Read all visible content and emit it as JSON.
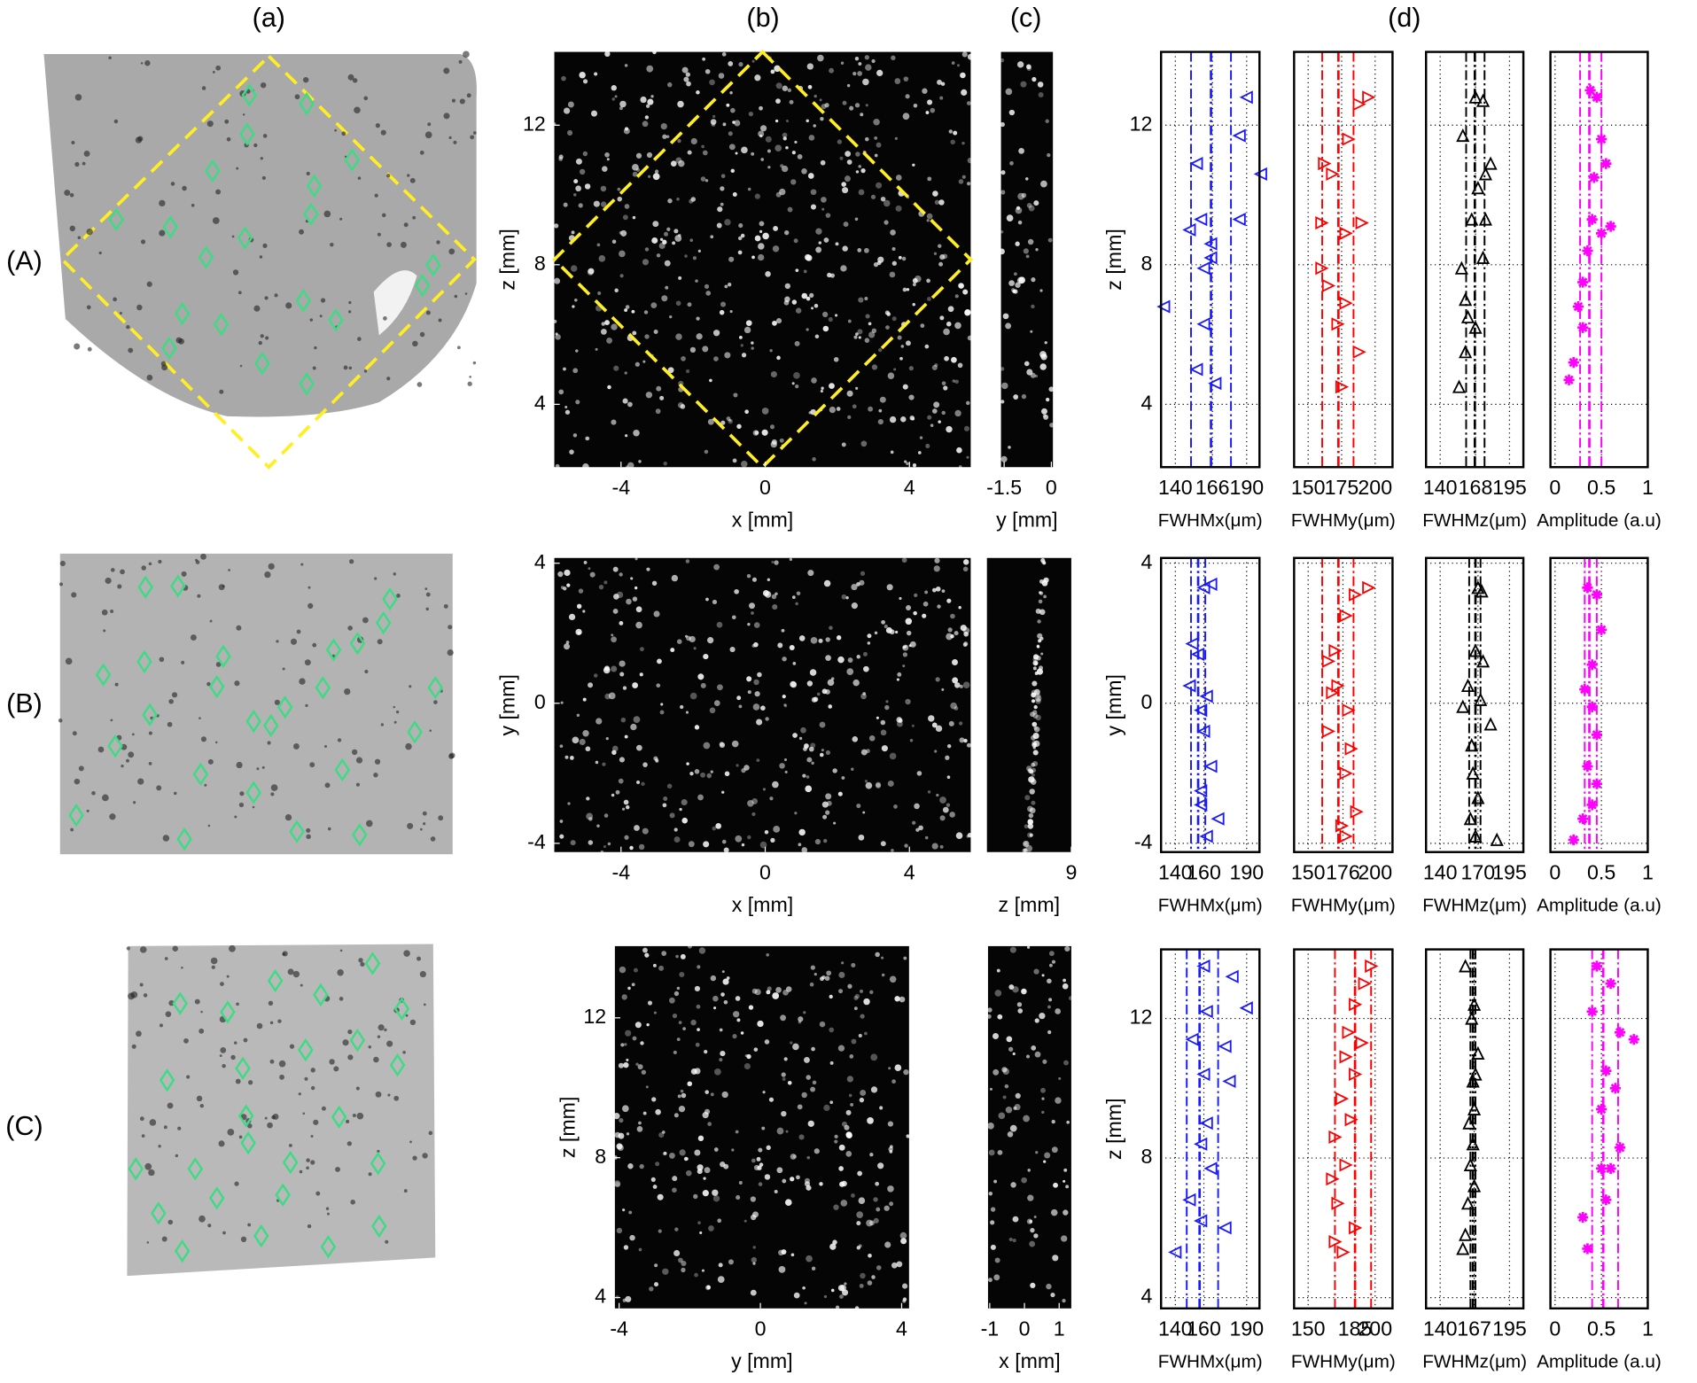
{
  "column_labels": [
    "(a)",
    "(b)",
    "(c)",
    "(d)"
  ],
  "row_labels": [
    "(A)",
    "(B)",
    "(C)"
  ],
  "chart_data": [
    {
      "type": "image",
      "xlabel": "x [mm]",
      "ylabel": "z [mm]",
      "xlim": [
        -5.85,
        5.7
      ],
      "xticks": [
        -4,
        0,
        4
      ],
      "ylim": [
        2.2,
        14.1
      ],
      "yticks": [
        4,
        8,
        12
      ]
    },
    {
      "type": "image",
      "xlabel": "y [mm]",
      "xlim": [
        -1.6,
        0.05
      ],
      "xticks": [
        -1.5,
        0
      ],
      "ylim": [
        2.2,
        14.1
      ]
    },
    {
      "type": "scatter",
      "xlabel": "FWHMx(μm)",
      "ylabel": "z [mm]",
      "xlim": [
        130,
        199
      ],
      "xticks": [
        140,
        166,
        190
      ],
      "ylim": [
        2.2,
        14.1
      ],
      "yticks": [
        4,
        8,
        12
      ],
      "marker": "triangle-left",
      "color": "#1a1aff",
      "lines": [
        151,
        165,
        179
      ],
      "x": [
        190,
        185,
        200,
        155,
        158,
        150,
        165,
        160,
        132,
        160,
        155,
        168,
        185,
        165
      ],
      "y": [
        12.8,
        11.7,
        10.6,
        10.9,
        9.3,
        9,
        8.6,
        7.9,
        6.8,
        6.3,
        5,
        4.6,
        9.3,
        8.2
      ]
    },
    {
      "type": "scatter",
      "xlabel": "FWHMy(μm)",
      "xlim": [
        139.5,
        213
      ],
      "xticks": [
        150,
        175,
        200
      ],
      "ylim": [
        2.2,
        14.1
      ],
      "yticks": [
        4,
        8,
        12
      ],
      "ytick_labels": false,
      "marker": "triangle-right",
      "color": "#ff0000",
      "lines": [
        160.5,
        172.6,
        183.9
      ],
      "x": [
        195,
        188,
        180,
        162,
        168,
        160,
        190,
        178,
        160,
        165,
        178,
        172,
        188,
        175
      ],
      "y": [
        12.8,
        12.6,
        11.6,
        10.9,
        10.6,
        9.2,
        9.2,
        8.9,
        7.9,
        7.4,
        6.9,
        6.3,
        5.5,
        4.5
      ]
    },
    {
      "type": "scatter",
      "xlabel": "FWHMz(μm)",
      "xlim": [
        128.8,
        206
      ],
      "xticks": [
        140,
        168,
        195
      ],
      "ylim": [
        2.2,
        14.1
      ],
      "yticks": [
        4,
        8,
        12
      ],
      "ytick_labels": false,
      "marker": "triangle-up",
      "color": "#000000",
      "lines": [
        160.6,
        167.5,
        175.2
      ],
      "x": [
        168,
        174,
        158,
        180,
        176,
        165,
        170,
        176,
        157,
        174,
        160,
        162,
        168,
        160,
        155
      ],
      "y": [
        12.8,
        12.7,
        11.7,
        10.9,
        10.6,
        9.3,
        10.2,
        9.3,
        7.9,
        8.2,
        7,
        6.5,
        6.2,
        5.5,
        4.5
      ]
    },
    {
      "type": "scatter",
      "xlabel": "Amplitude (a.u)",
      "xlim": [
        -0.05,
        1
      ],
      "xticks": [
        0,
        0.5,
        1
      ],
      "ylim": [
        2.2,
        14.1
      ],
      "yticks": [
        4,
        8,
        12
      ],
      "ytick_labels": false,
      "marker": "star",
      "color": "#ff00ff",
      "lines": [
        0.27,
        0.37,
        0.5
      ],
      "x": [
        0.38,
        0.45,
        0.5,
        0.55,
        0.42,
        0.4,
        0.5,
        0.6,
        0.35,
        0.3,
        0.25,
        0.3,
        0.2,
        0.15
      ],
      "y": [
        13,
        12.8,
        11.6,
        10.9,
        10.5,
        9.3,
        8.9,
        9.1,
        8.4,
        7.5,
        6.8,
        6.2,
        5.2,
        4.7
      ]
    },
    {
      "type": "image",
      "xlabel": "x [mm]",
      "ylabel": "y [mm]",
      "xlim": [
        -5.85,
        5.7
      ],
      "xticks": [
        -4,
        0,
        4
      ],
      "ylim": [
        -4.25,
        4.15
      ],
      "yticks": [
        -4,
        0,
        4
      ]
    },
    {
      "type": "image",
      "xlabel": "z [mm]",
      "xlim": [
        6.6,
        9
      ],
      "xticks": [
        9
      ],
      "ylim": [
        -4.25,
        4.15
      ]
    },
    {
      "type": "scatter",
      "xlabel": "FWHMx(μm)",
      "ylabel": "y [mm]",
      "xlim": [
        130,
        199
      ],
      "xticks": [
        140,
        160,
        190
      ],
      "ylim": [
        -4.25,
        4.15
      ],
      "yticks": [
        -4,
        0,
        4
      ],
      "marker": "triangle-left",
      "color": "#1a1aff",
      "lines": [
        151,
        156,
        161
      ],
      "x": [
        165,
        160,
        152,
        156,
        150,
        162,
        158,
        160,
        165,
        158,
        170,
        162,
        158
      ],
      "y": [
        3.4,
        3.3,
        1.7,
        1.4,
        0.5,
        0.2,
        -0.2,
        -0.8,
        -1.8,
        -2.5,
        -3.3,
        -3.8,
        -2.9
      ]
    },
    {
      "type": "scatter",
      "xlabel": "FWHMy(μm)",
      "xlim": [
        139.5,
        213
      ],
      "xticks": [
        150,
        176,
        200
      ],
      "ylim": [
        -4.25,
        4.15
      ],
      "yticks": [
        -4,
        0,
        4
      ],
      "ytick_labels": false,
      "marker": "triangle-right",
      "color": "#ff0000",
      "lines": [
        160.5,
        172.6,
        183.9
      ],
      "x": [
        195,
        185,
        178,
        170,
        165,
        172,
        168,
        180,
        165,
        182,
        178,
        186,
        178,
        175
      ],
      "y": [
        3.3,
        3.1,
        2.5,
        1.5,
        1.2,
        0.5,
        0.3,
        -0.2,
        -0.8,
        -1.3,
        -2,
        -3.1,
        -3.8,
        -3.5
      ]
    },
    {
      "type": "scatter",
      "xlabel": "FWHMz(μm)",
      "xlim": [
        128.8,
        206
      ],
      "xticks": [
        140,
        170,
        195
      ],
      "ylim": [
        -4.25,
        4.15
      ],
      "yticks": [
        -4,
        0,
        4
      ],
      "ytick_labels": false,
      "marker": "triangle-up",
      "color": "#000000",
      "lines": [
        163,
        168,
        172
      ],
      "x": [
        170,
        173,
        168,
        174,
        162,
        172,
        180,
        158,
        165,
        166,
        170,
        164,
        168,
        185
      ],
      "y": [
        3.3,
        3.2,
        1.5,
        1.2,
        0.5,
        0.1,
        -0.6,
        -0.1,
        -1.2,
        -2,
        -2.7,
        -3.3,
        -3.8,
        -3.9
      ]
    },
    {
      "type": "scatter",
      "xlabel": "Amplitude (a.u)",
      "xlim": [
        -0.05,
        1
      ],
      "xticks": [
        0,
        0.5,
        1
      ],
      "ylim": [
        -4.25,
        4.15
      ],
      "yticks": [
        -4,
        0,
        4
      ],
      "ytick_labels": false,
      "marker": "star",
      "color": "#ff00ff",
      "lines": [
        0.32,
        0.37,
        0.45
      ],
      "x": [
        0.35,
        0.45,
        0.5,
        0.4,
        0.32,
        0.4,
        0.45,
        0.35,
        0.4,
        0.3,
        0.2,
        0.45
      ],
      "y": [
        3.3,
        3.1,
        2.1,
        1.1,
        0.4,
        -0.1,
        -0.9,
        -1.8,
        -2.9,
        -3.3,
        -3.9,
        -2.3
      ]
    },
    {
      "type": "image",
      "xlabel": "y [mm]",
      "ylabel": "z [mm]",
      "xlim": [
        -4.12,
        4.21
      ],
      "xticks": [
        -4,
        0,
        4
      ],
      "ylim": [
        3.69,
        14.05
      ],
      "yticks": [
        4,
        8,
        12
      ]
    },
    {
      "type": "image",
      "xlabel": "x [mm]",
      "xlim": [
        -1.05,
        1.35
      ],
      "xticks": [
        -1,
        0,
        1
      ],
      "ylim": [
        3.69,
        14.05
      ]
    },
    {
      "type": "scatter",
      "xlabel": "FWHMx(μm)",
      "ylabel": "z [mm]",
      "xlim": [
        130,
        199
      ],
      "xticks": [
        140,
        160,
        190
      ],
      "ylim": [
        3.69,
        13.98
      ],
      "yticks": [
        4,
        8,
        12
      ],
      "marker": "triangle-left",
      "color": "#1a1aff",
      "lines": [
        148,
        157,
        170
      ],
      "x": [
        160,
        180,
        190,
        162,
        175,
        152,
        178,
        160,
        162,
        158,
        165,
        150,
        158,
        175,
        140
      ],
      "y": [
        13.5,
        13.2,
        12.3,
        12.2,
        11.2,
        11.4,
        10.2,
        10.4,
        9,
        8.4,
        7.7,
        6.8,
        6.2,
        6,
        5.3
      ]
    },
    {
      "type": "scatter",
      "xlabel": "FWHMy(μm)",
      "xlim": [
        139.5,
        213
      ],
      "xticks": [
        150,
        185,
        200
      ],
      "ylim": [
        3.69,
        13.98
      ],
      "yticks": [
        4,
        8,
        12
      ],
      "ytick_labels": false,
      "marker": "triangle-right",
      "color": "#ff0000",
      "lines": [
        170,
        185,
        197
      ],
      "x": [
        197,
        192,
        185,
        180,
        190,
        178,
        185,
        175,
        182,
        170,
        178,
        168,
        172,
        185,
        170,
        176
      ],
      "y": [
        13.5,
        13,
        12.4,
        11.6,
        11.3,
        10.9,
        10.4,
        9.7,
        9.1,
        8.6,
        7.8,
        7.4,
        6.7,
        6,
        5.6,
        5.3
      ]
    },
    {
      "type": "scatter",
      "xlabel": "FWHMz(μm)",
      "xlim": [
        128.8,
        206
      ],
      "xticks": [
        140,
        167,
        195
      ],
      "ylim": [
        3.69,
        13.98
      ],
      "yticks": [
        4,
        8,
        12
      ],
      "ytick_labels": false,
      "marker": "triangle-up",
      "color": "#000000",
      "lines": [
        164,
        166,
        168
      ],
      "x": [
        160,
        167,
        165,
        170,
        168,
        166,
        167,
        163,
        166,
        164,
        167,
        162,
        160,
        158
      ],
      "y": [
        13.5,
        12.4,
        12,
        11,
        10.4,
        10.2,
        9.4,
        9,
        8.4,
        7.8,
        7.2,
        6.7,
        5.8,
        5.4
      ]
    },
    {
      "type": "scatter",
      "xlabel": "Amplitude (a.u)",
      "xlim": [
        -0.05,
        1
      ],
      "xticks": [
        0,
        0.5,
        1
      ],
      "ylim": [
        3.69,
        13.98
      ],
      "yticks": [
        4,
        8,
        12
      ],
      "ytick_labels": false,
      "marker": "star",
      "color": "#ff00ff",
      "lines": [
        0.4,
        0.52,
        0.68
      ],
      "x": [
        0.45,
        0.6,
        0.4,
        0.7,
        0.85,
        0.55,
        0.65,
        0.5,
        0.7,
        0.5,
        0.6,
        0.55,
        0.3,
        0.35
      ],
      "y": [
        13.5,
        13,
        12.2,
        11.6,
        11.4,
        10.5,
        10,
        9.4,
        8.3,
        7.7,
        7.7,
        6.8,
        6.3,
        5.4
      ]
    }
  ]
}
